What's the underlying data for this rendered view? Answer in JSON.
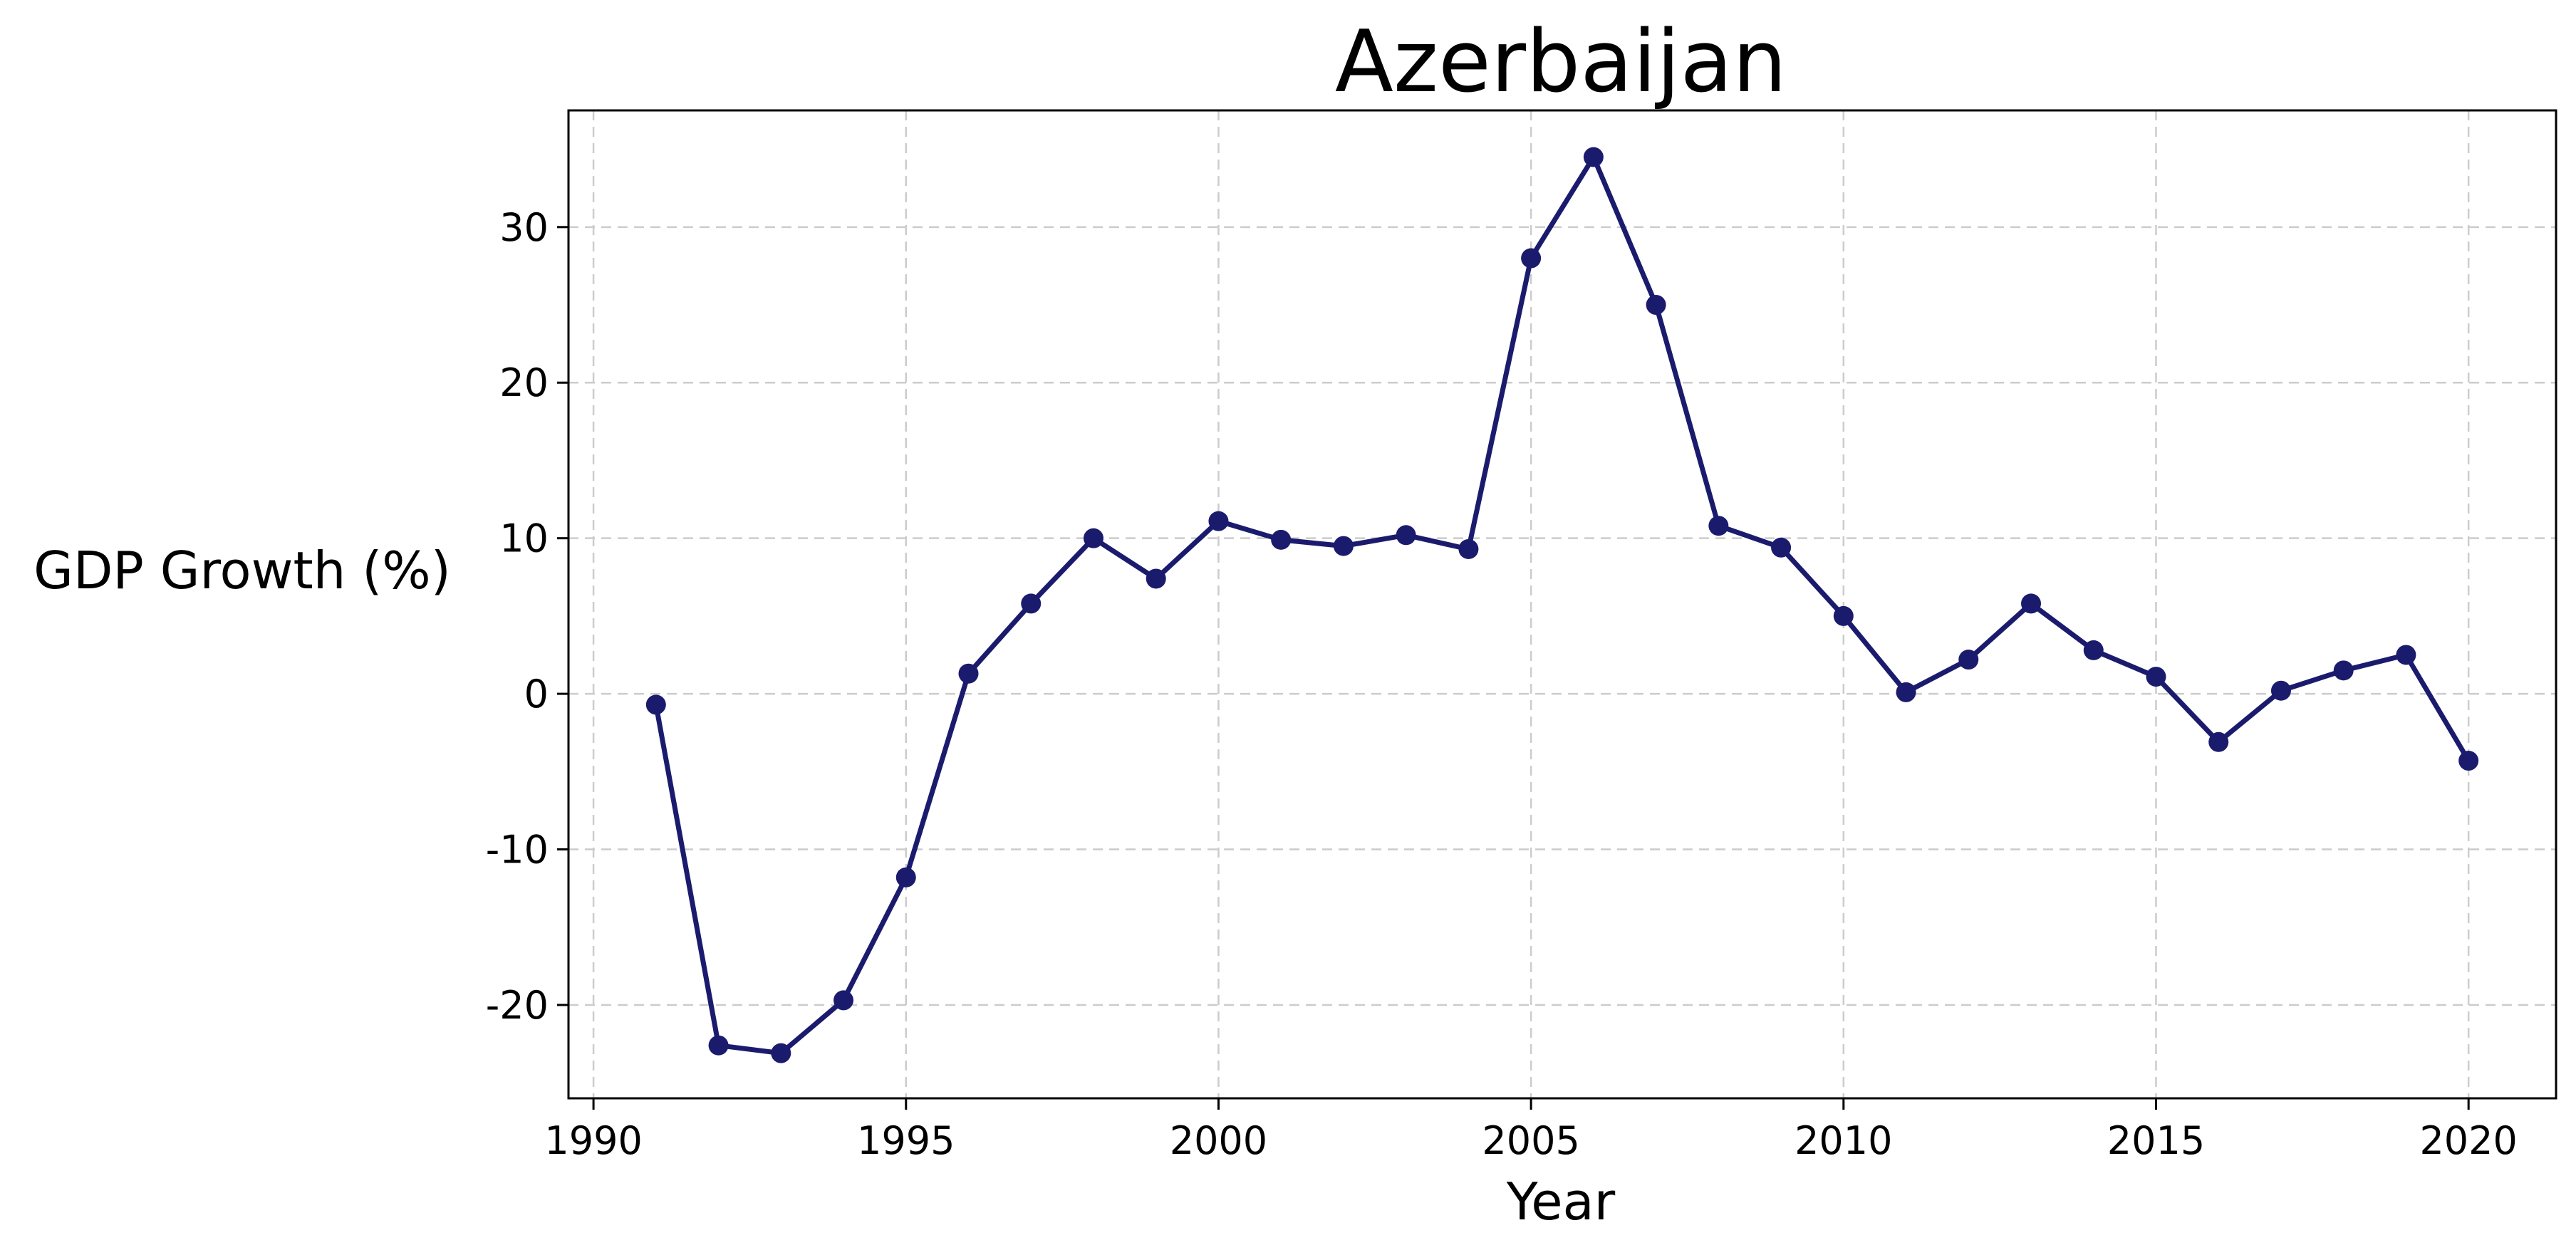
{
  "chart_data": {
    "type": "line",
    "title": "Azerbaijan",
    "xlabel": "Year",
    "ylabel": "GDP Growth (%)",
    "xlim": [
      1989.6,
      2021.4
    ],
    "ylim": [
      -26,
      37.5
    ],
    "xticks": [
      1990,
      1995,
      2000,
      2005,
      2010,
      2015,
      2020
    ],
    "yticks": [
      -20,
      -10,
      0,
      10,
      20,
      30
    ],
    "grid": true,
    "line_color": "#1b1b6e",
    "series": [
      {
        "x": [
          1991,
          1992,
          1993,
          1994,
          1995,
          1996,
          1997,
          1998,
          1999,
          2000,
          2001,
          2002,
          2003,
          2004,
          2005,
          2006,
          2007,
          2008,
          2009,
          2010,
          2011,
          2012,
          2013,
          2014,
          2015,
          2016,
          2017,
          2018,
          2019,
          2020
        ],
        "values": [
          -0.7,
          -22.6,
          -23.1,
          -19.7,
          -11.8,
          1.3,
          5.8,
          10.0,
          7.4,
          11.1,
          9.9,
          9.5,
          10.2,
          9.3,
          28.0,
          34.5,
          25.0,
          10.8,
          9.4,
          5.0,
          0.1,
          2.2,
          5.8,
          2.8,
          1.1,
          -3.1,
          0.2,
          1.5,
          2.5,
          -4.3
        ]
      }
    ]
  }
}
